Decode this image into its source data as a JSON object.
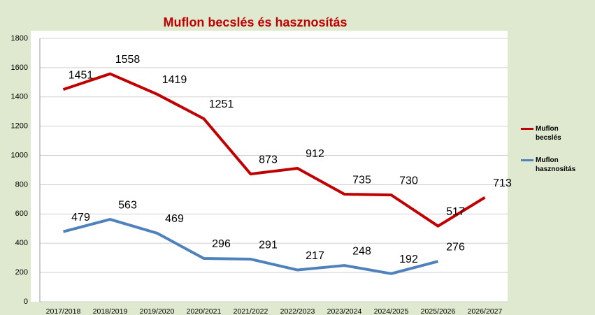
{
  "chart_data": {
    "type": "line",
    "title": "Muflon becslés és hasznosítás",
    "categories": [
      "2017/2018",
      "2018/2019",
      "2019/2020",
      "2020/2021",
      "2021/2022",
      "2022/2023",
      "2023/2024",
      "2024/2025",
      "2025/2026",
      "2026/2027"
    ],
    "series": [
      {
        "name": "Muflon becslés",
        "color": "#c00000",
        "values": [
          1451,
          1558,
          1419,
          1251,
          873,
          912,
          735,
          730,
          517,
          713
        ]
      },
      {
        "name": "Muflon hasznosítás",
        "color": "#4f81bd",
        "values": [
          479,
          563,
          469,
          296,
          291,
          217,
          248,
          192,
          276,
          null
        ]
      }
    ],
    "ylim": [
      0,
      1800
    ],
    "yticks": [
      0,
      200,
      400,
      600,
      800,
      1000,
      1200,
      1400,
      1600,
      1800
    ],
    "grid": true,
    "legend": "right"
  }
}
